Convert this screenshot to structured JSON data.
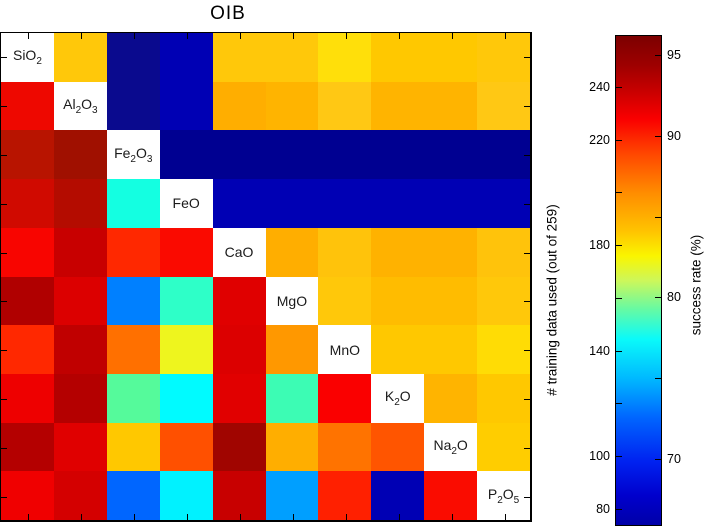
{
  "title": "OIB",
  "chart_data": {
    "type": "heatmap",
    "title": "OIB",
    "grid_size": 10,
    "categories": [
      "SiO2",
      "Al2O3",
      "Fe2O3",
      "FeO",
      "CaO",
      "MgO",
      "MnO",
      "K2O",
      "Na2O",
      "P2O5"
    ],
    "diagonal_color": "#FFFFFF",
    "cells": [
      [
        null,
        "#FFC80A",
        "#0A0A8E",
        "#0000B4",
        "#FFC80A",
        "#FFC80A",
        "#FFDF0A",
        "#FFC800",
        "#FFC800",
        "#FFC80A"
      ],
      [
        "#EE0800",
        null,
        "#0A0A8E",
        "#0000B4",
        "#FFAE00",
        "#FFB400",
        "#FFC814",
        "#FFB400",
        "#FFB400",
        "#FFC814"
      ],
      [
        "#B81400",
        "#A01000",
        null,
        "#000091",
        "#000091",
        "#000091",
        "#000091",
        "#000091",
        "#000091",
        "#000091"
      ],
      [
        "#D00A00",
        "#B40C00",
        "#14FFE1",
        null,
        "#0000B4",
        "#0000B4",
        "#0000B4",
        "#0000B4",
        "#0000B4",
        "#0000B4"
      ],
      [
        "#F80500",
        "#C80000",
        "#FF2800",
        "#FA0A00",
        null,
        "#FFAE00",
        "#FFC30B",
        "#FFB200",
        "#FFB200",
        "#FFC30B"
      ],
      [
        "#B00000",
        "#DC0000",
        "#0080FF",
        "#2EFFC8",
        "#E00000",
        null,
        "#FFC80A",
        "#FFBC00",
        "#FFBC00",
        "#FFC80A"
      ],
      [
        "#FF2800",
        "#C00000",
        "#FF7000",
        "#EEF51E",
        "#DC0000",
        "#FF9800",
        null,
        "#FFC800",
        "#FFC800",
        "#FFDC05"
      ],
      [
        "#EE0000",
        "#B40000",
        "#55FA9B",
        "#00FBFF",
        "#E10000",
        "#3CFCB4",
        "#FA0000",
        null,
        "#FFB400",
        "#FFC800"
      ],
      [
        "#B40000",
        "#E00000",
        "#FFC800",
        "#FF5000",
        "#A00500",
        "#FFAE00",
        "#FF7300",
        "#FF5500",
        null,
        "#FFCD00"
      ],
      [
        "#F00000",
        "#D40000",
        "#0066FF",
        "#00F2FF",
        "#C80000",
        "#009FFF",
        "#FF2000",
        "#0000B4",
        "#FA0C00",
        null
      ]
    ],
    "colorbar": {
      "left_axis": {
        "label": "# training data used (out of 259)",
        "value_at_top": 259.3,
        "value_at_bottom": 73.9,
        "ticks": [
          240,
          220,
          200,
          180,
          160,
          140,
          120,
          100,
          80
        ],
        "labeled_ticks": [
          240,
          220,
          180,
          140,
          100,
          80
        ]
      },
      "right_axis": {
        "label": "success rate (%)",
        "value_at_top": 96.2,
        "value_at_bottom": 65.9,
        "ticks": [
          95,
          90,
          85,
          80,
          75,
          70
        ],
        "labeled_ticks": [
          95,
          90,
          80,
          70
        ]
      },
      "gradient_stops": [
        [
          "0%",
          "#7C0000"
        ],
        [
          "6%",
          "#9E0000"
        ],
        [
          "11%",
          "#C60000"
        ],
        [
          "17%",
          "#FA0000"
        ],
        [
          "24%",
          "#FF4600"
        ],
        [
          "32%",
          "#FF8C00"
        ],
        [
          "40%",
          "#FFC400"
        ],
        [
          "45%",
          "#FAF500"
        ],
        [
          "50%",
          "#CDF75A"
        ],
        [
          "56%",
          "#64FAA5"
        ],
        [
          "62%",
          "#0AFAFA"
        ],
        [
          "70%",
          "#00B9FF"
        ],
        [
          "78%",
          "#0066FF"
        ],
        [
          "87%",
          "#0022F0"
        ],
        [
          "94%",
          "#0000CD"
        ],
        [
          "100%",
          "#0000A8"
        ]
      ]
    },
    "axis_color": "#000000",
    "legend_position": "right",
    "grid": false
  }
}
